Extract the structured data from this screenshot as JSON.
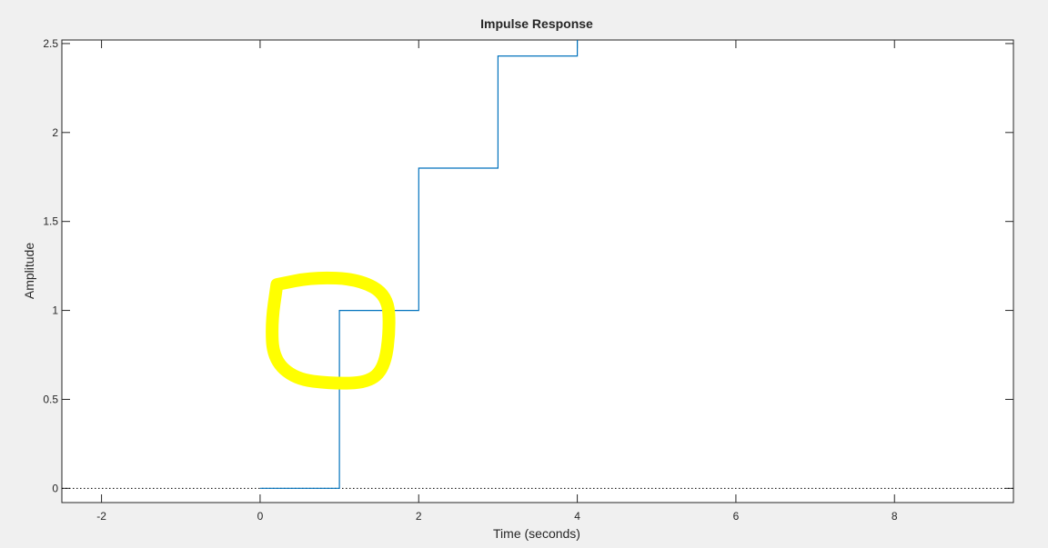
{
  "chart_data": {
    "type": "line",
    "step": true,
    "title": "Impulse Response",
    "xlabel": "Time (seconds)",
    "ylabel": "Amplitude",
    "xlim": [
      -2.5,
      9.5
    ],
    "ylim": [
      -0.08,
      2.52
    ],
    "xticks": [
      -2,
      0,
      2,
      4,
      6,
      8
    ],
    "xtick_labels": [
      "-2",
      "0",
      "2",
      "4",
      "6",
      "8"
    ],
    "yticks": [
      0,
      0.5,
      1,
      1.5,
      2,
      2.5
    ],
    "ytick_labels": [
      "0",
      "0.5",
      "1",
      "1.5",
      "2",
      "2.5"
    ],
    "series": [
      {
        "color": "#0072bd",
        "x": [
          0,
          1,
          1,
          2,
          2,
          3,
          3,
          4,
          4
        ],
        "y": [
          0,
          0,
          1,
          1,
          1.8,
          1.8,
          2.43,
          2.43,
          2.6
        ]
      }
    ],
    "reference_line": {
      "y": 0,
      "style": "dotted",
      "color": "#000000"
    },
    "annotation": {
      "type": "hand-drawn-circle",
      "color": "#ffff00",
      "center_x": 0.9,
      "center_y": 0.88
    },
    "grid": false,
    "colors": {
      "background": "#f0f0f0",
      "axes": "#ffffff",
      "axis_line": "#262626"
    }
  }
}
